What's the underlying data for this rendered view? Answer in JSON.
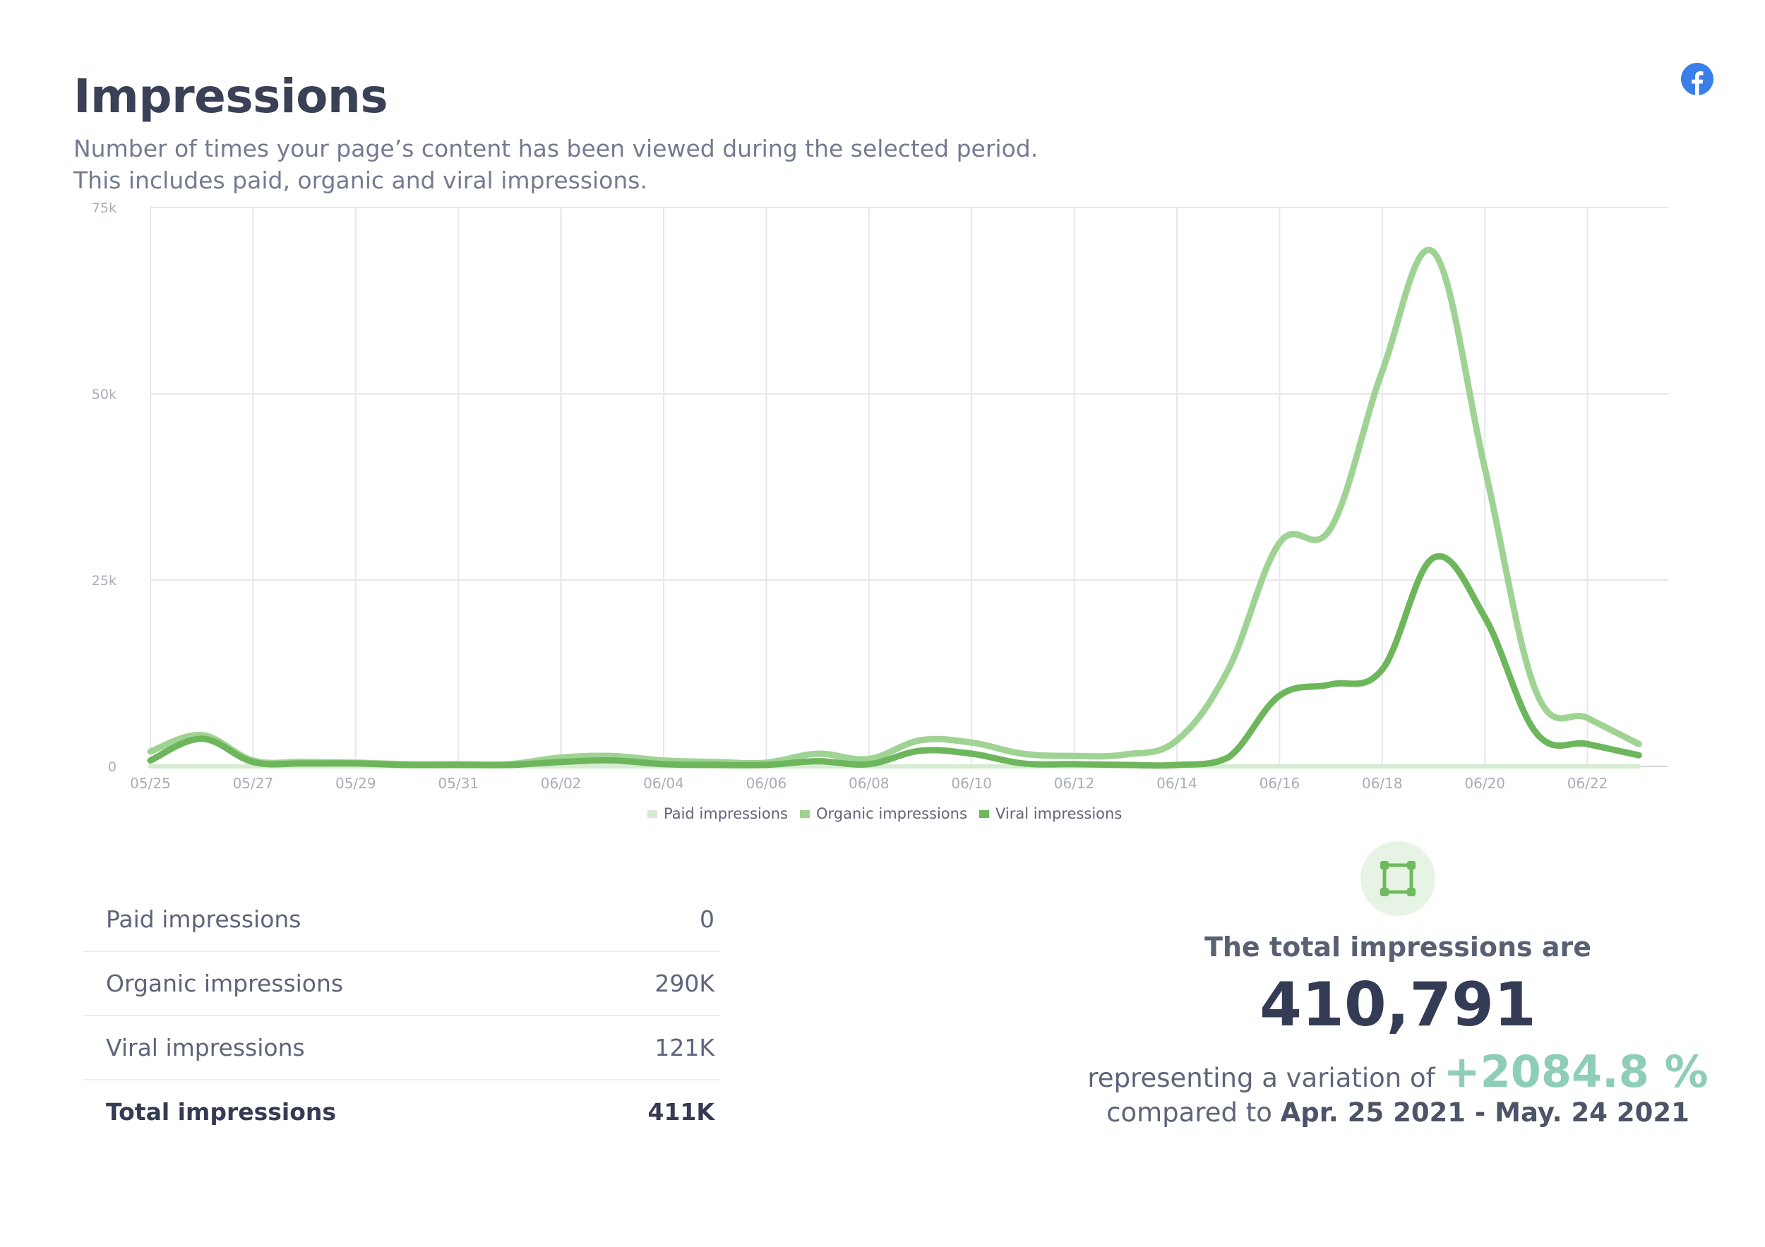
{
  "header": {
    "title": "Impressions",
    "subtitle_line1": "Number of times your page’s content has been viewed during the selected period.",
    "subtitle_line2": "This includes paid, organic and viral impressions.",
    "platform_icon": "facebook-icon",
    "platform_color": "#3b7ee8"
  },
  "chart_data": {
    "type": "line",
    "x": [
      "05/25",
      "05/26",
      "05/27",
      "05/28",
      "05/29",
      "05/30",
      "05/31",
      "06/01",
      "06/02",
      "06/03",
      "06/04",
      "06/05",
      "06/06",
      "06/07",
      "06/08",
      "06/09",
      "06/10",
      "06/11",
      "06/12",
      "06/13",
      "06/14",
      "06/15",
      "06/16",
      "06/17",
      "06/18",
      "06/19",
      "06/20",
      "06/21",
      "06/22",
      "06/23"
    ],
    "x_ticks": [
      "05/25",
      "05/27",
      "05/29",
      "05/31",
      "06/02",
      "06/04",
      "06/06",
      "06/08",
      "06/10",
      "06/12",
      "06/14",
      "06/16",
      "06/18",
      "06/20",
      "06/22"
    ],
    "y_ticks": [
      0,
      25000,
      50000,
      75000
    ],
    "y_tick_labels": [
      "0",
      "25k",
      "50k",
      "75k"
    ],
    "ylim": [
      0,
      75000
    ],
    "grid": true,
    "legend_position": "bottom",
    "series": [
      {
        "name": "Paid impressions",
        "color": "#d6ecd2",
        "values": [
          0,
          0,
          0,
          0,
          0,
          0,
          0,
          0,
          0,
          0,
          0,
          0,
          0,
          0,
          0,
          0,
          0,
          0,
          0,
          0,
          0,
          0,
          0,
          0,
          0,
          0,
          0,
          0,
          0,
          0
        ]
      },
      {
        "name": "Organic impressions",
        "color": "#9fd393",
        "values": [
          2000,
          4200,
          800,
          600,
          500,
          300,
          300,
          300,
          1200,
          1400,
          800,
          600,
          500,
          1700,
          1000,
          3500,
          3200,
          1700,
          1400,
          1600,
          3500,
          13000,
          30000,
          32000,
          53000,
          69000,
          40000,
          10000,
          6500,
          3000
        ]
      },
      {
        "name": "Viral impressions",
        "color": "#6db65b",
        "values": [
          800,
          3700,
          600,
          400,
          400,
          200,
          200,
          200,
          600,
          800,
          300,
          200,
          200,
          700,
          300,
          2100,
          1700,
          400,
          300,
          200,
          200,
          1200,
          9500,
          11000,
          13000,
          28000,
          20000,
          4500,
          3000,
          1500
        ]
      }
    ]
  },
  "stats_table": {
    "rows": [
      {
        "label": "Paid impressions",
        "value": "0"
      },
      {
        "label": "Organic impressions",
        "value": "290K"
      },
      {
        "label": "Viral impressions",
        "value": "121K"
      }
    ],
    "total": {
      "label": "Total impressions",
      "value": "411K"
    }
  },
  "summary": {
    "icon": "impressions-frame-icon",
    "heading": "The total impressions are",
    "value": "410,791",
    "variation_prefix": "representing a variation of",
    "variation": "+2084.8 %",
    "compare_prefix": "compared to",
    "compare_period": "Apr. 25 2021 - May. 24 2021"
  }
}
